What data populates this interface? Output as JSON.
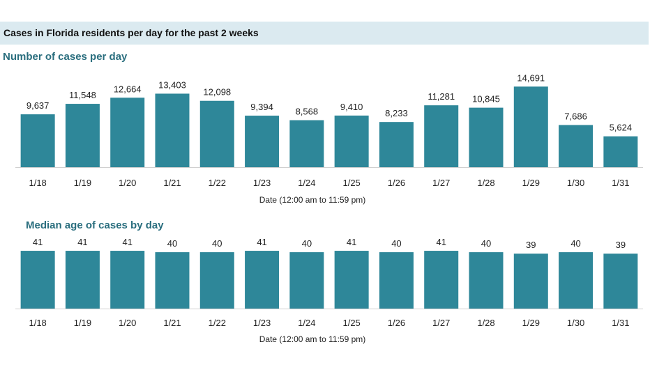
{
  "header": {
    "title": "Cases in Florida residents per day for the past 2 weeks"
  },
  "colors": {
    "bar": "#2e8799",
    "title": "#2a6e7e",
    "header_band": "#dbeaf0"
  },
  "chart_data": [
    {
      "type": "bar",
      "title": "Number of cases per day",
      "xlabel": "Date (12:00 am to 11:59 pm)",
      "ylabel": "",
      "ylim": [
        0,
        16000
      ],
      "grid": false,
      "categories": [
        "1/18",
        "1/19",
        "1/20",
        "1/21",
        "1/22",
        "1/23",
        "1/24",
        "1/25",
        "1/26",
        "1/27",
        "1/28",
        "1/29",
        "1/30",
        "1/31"
      ],
      "values": [
        9637,
        11548,
        12664,
        13403,
        12098,
        9394,
        8568,
        9410,
        8233,
        11281,
        10845,
        14691,
        7686,
        5624
      ],
      "value_labels": [
        "9,637",
        "11,548",
        "12,664",
        "13,403",
        "12,098",
        "9,394",
        "8,568",
        "9,410",
        "8,233",
        "11,281",
        "10,845",
        "14,691",
        "7,686",
        "5,624"
      ]
    },
    {
      "type": "bar",
      "title": "Median age of cases by day",
      "xlabel": "Date (12:00 am to 11:59 pm)",
      "ylabel": "",
      "ylim": [
        0,
        43
      ],
      "grid": false,
      "categories": [
        "1/18",
        "1/19",
        "1/20",
        "1/21",
        "1/22",
        "1/23",
        "1/24",
        "1/25",
        "1/26",
        "1/27",
        "1/28",
        "1/29",
        "1/30",
        "1/31"
      ],
      "values": [
        41,
        41,
        41,
        40,
        40,
        41,
        40,
        41,
        40,
        41,
        40,
        39,
        40,
        39
      ],
      "value_labels": [
        "41",
        "41",
        "41",
        "40",
        "40",
        "41",
        "40",
        "41",
        "40",
        "41",
        "40",
        "39",
        "40",
        "39"
      ]
    }
  ]
}
